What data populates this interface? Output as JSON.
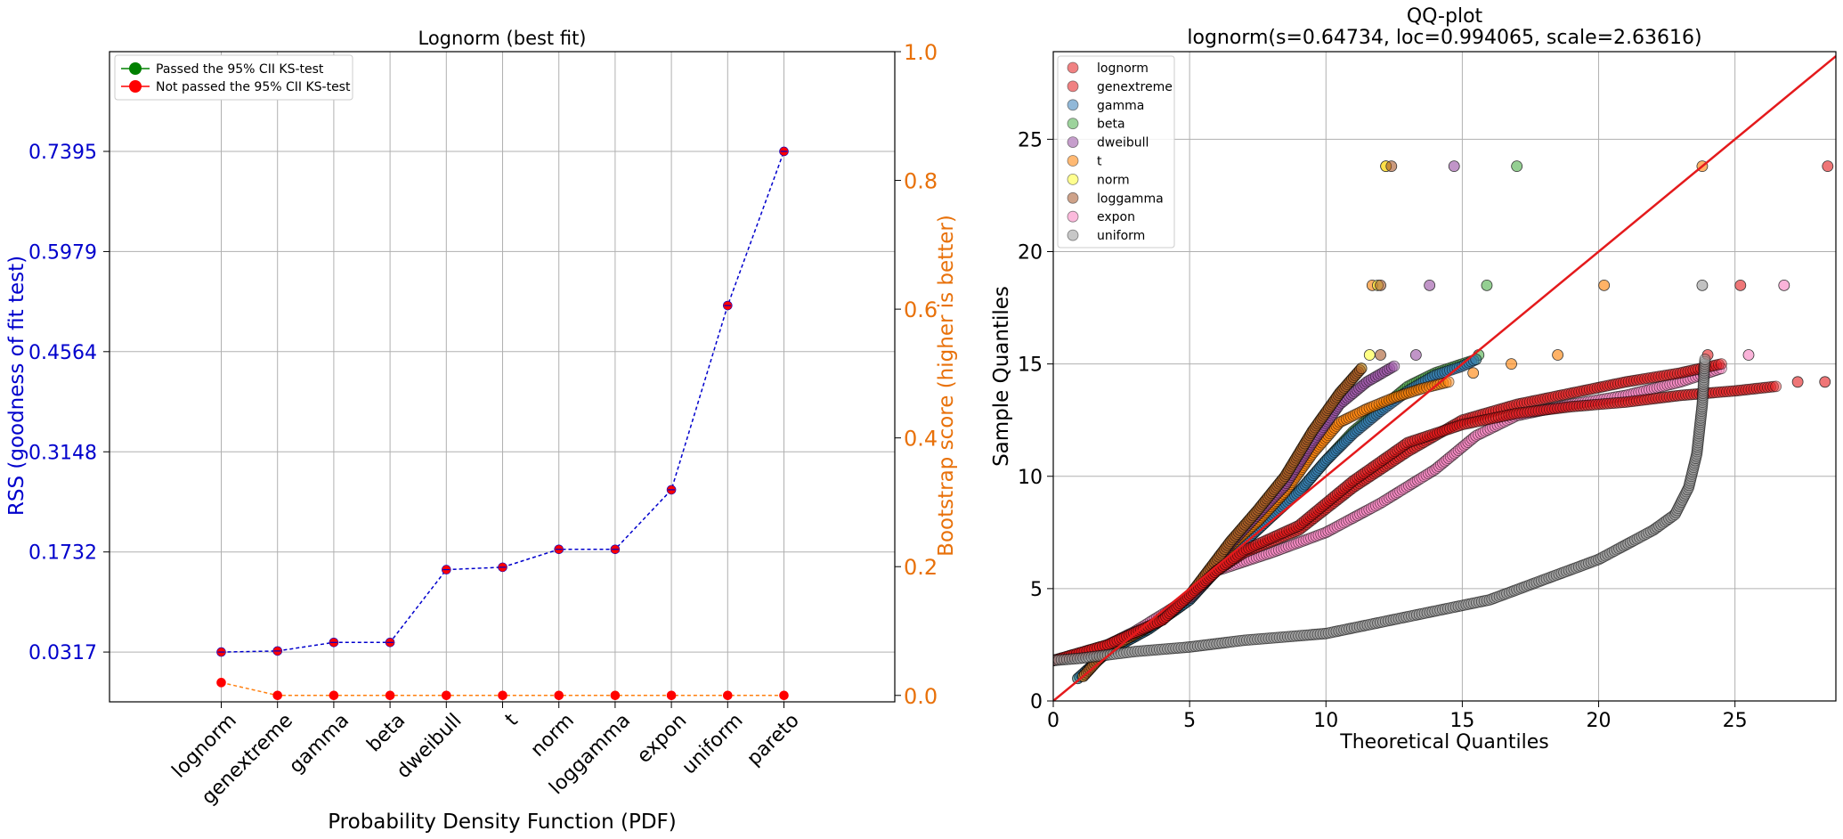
{
  "chart_data": [
    {
      "type": "line",
      "title": "Lognorm (best fit)",
      "xlabel": "Probability Density Function (PDF)",
      "ylabel": "RSS (goodness of fit test)",
      "y2label": "Bootstrap score (higher is better)",
      "categories": [
        "lognorm",
        "genextreme",
        "gamma",
        "beta",
        "dweibull",
        "t",
        "norm",
        "loggamma",
        "expon",
        "uniform",
        "pareto"
      ],
      "series": [
        {
          "values": [
            0.0317,
            0.0332,
            0.0453,
            0.0453,
            0.1482,
            0.1516,
            0.1769,
            0.1769,
            0.2611,
            0.5216,
            0.7395
          ],
          "color": "#0000cc"
        },
        {
          "values": [
            0.02,
            0,
            0,
            0,
            0,
            0,
            0,
            0,
            0,
            0,
            0
          ],
          "color": "#ff7f0e"
        }
      ],
      "yticks": [
        "0.0317",
        "0.1732",
        "0.3148",
        "0.4564",
        "0.5979",
        "0.7395"
      ],
      "ylim": [
        -0.0387,
        0.8805
      ],
      "y2ticks": [
        "0.0",
        "0.2",
        "0.4",
        "0.6",
        "0.8",
        "1.0"
      ],
      "y2lim": [
        -0.01,
        1.0
      ],
      "legend": {
        "placement": "top-left",
        "entries": [
          {
            "label": "Passed the 95% CII KS-test",
            "color": "#008000"
          },
          {
            "label": "Not passed the 95% CII KS-test",
            "color": "#ff0000"
          }
        ]
      },
      "grid": true
    },
    {
      "type": "scatter",
      "title": "QQ-plot",
      "subtitle": "lognorm(s=0.64734, loc=0.994065, scale=2.63616)",
      "xlabel": "Theoretical Quantiles",
      "ylabel": "Sample Quantiles",
      "xlim": [
        0,
        28.7
      ],
      "ylim": [
        0,
        28.9
      ],
      "xticks": [
        "0",
        "5",
        "10",
        "15",
        "20",
        "25"
      ],
      "yticks": [
        "0",
        "5",
        "10",
        "15",
        "20",
        "25"
      ],
      "reference_line": {
        "from": [
          0,
          0
        ],
        "to": [
          28.7,
          28.7
        ],
        "color": "#e41a1c"
      },
      "legend": {
        "placement": "top-left",
        "entries": [
          {
            "label": "lognorm",
            "color": "#e41a1c"
          },
          {
            "label": "genextreme",
            "color": "#e41a1c"
          },
          {
            "label": "gamma",
            "color": "#377eb8"
          },
          {
            "label": "beta",
            "color": "#4daf4a"
          },
          {
            "label": "dweibull",
            "color": "#984ea3"
          },
          {
            "label": "t",
            "color": "#ff7f00"
          },
          {
            "label": "norm",
            "color": "#ffff33"
          },
          {
            "label": "loggamma",
            "color": "#a65628"
          },
          {
            "label": "expon",
            "color": "#f781bf"
          },
          {
            "label": "uniform",
            "color": "#999999"
          }
        ]
      },
      "series": [
        {
          "name": "beta",
          "color": "#4daf4a",
          "curve": [
            [
              0.9,
              1.0
            ],
            [
              2,
              2.2
            ],
            [
              3.5,
              3.2
            ],
            [
              5,
              4.5
            ],
            [
              6.5,
              6.5
            ],
            [
              8,
              8.2
            ],
            [
              9,
              9.3
            ],
            [
              10,
              10.7
            ],
            [
              11,
              12
            ],
            [
              12,
              13
            ],
            [
              13,
              14
            ],
            [
              14,
              14.6
            ],
            [
              15,
              15.0
            ],
            [
              15.5,
              15.2
            ]
          ],
          "outliers": [
            [
              15.6,
              15.4
            ],
            [
              15.9,
              18.5
            ],
            [
              17.0,
              23.8
            ]
          ]
        },
        {
          "name": "gamma",
          "color": "#377eb8",
          "curve": [
            [
              0.9,
              1.0
            ],
            [
              2,
              2.2
            ],
            [
              3.5,
              3.2
            ],
            [
              5,
              4.5
            ],
            [
              6.5,
              6.5
            ],
            [
              8,
              8.2
            ],
            [
              9,
              9.3
            ],
            [
              10,
              10.7
            ],
            [
              11,
              11.9
            ],
            [
              12,
              12.9
            ],
            [
              13,
              13.8
            ],
            [
              14,
              14.5
            ],
            [
              15,
              14.9
            ],
            [
              15.5,
              15.2
            ]
          ],
          "outliers": []
        },
        {
          "name": "t",
          "color": "#ff7f00",
          "curve": [
            [
              1.1,
              1.1
            ],
            [
              2,
              2.3
            ],
            [
              3.5,
              3.3
            ],
            [
              5,
              4.7
            ],
            [
              6.5,
              6.9
            ],
            [
              7.5,
              8
            ],
            [
              8.5,
              9.3
            ],
            [
              9.5,
              11
            ],
            [
              10.5,
              12.4
            ],
            [
              11.5,
              13
            ],
            [
              12.5,
              13.5
            ],
            [
              13.5,
              13.9
            ],
            [
              14.5,
              14.2
            ]
          ],
          "outliers": [
            [
              15.4,
              14.6
            ],
            [
              16.8,
              15.0
            ],
            [
              18.5,
              15.4
            ],
            [
              11.7,
              18.5
            ],
            [
              20.2,
              18.5
            ],
            [
              12.2,
              23.8
            ],
            [
              23.8,
              23.8
            ]
          ]
        },
        {
          "name": "dweibull",
          "color": "#984ea3",
          "curve": [
            [
              1.1,
              1.1
            ],
            [
              2,
              2.3
            ],
            [
              3.5,
              3.3
            ],
            [
              5,
              4.7
            ],
            [
              6.5,
              7
            ],
            [
              7.5,
              8.3
            ],
            [
              8.5,
              9.6
            ],
            [
              9.5,
              11.5
            ],
            [
              10.5,
              13.2
            ],
            [
              11.5,
              14.2
            ],
            [
              12.5,
              14.9
            ]
          ],
          "outliers": [
            [
              13.3,
              15.4
            ],
            [
              13.8,
              18.5
            ],
            [
              14.7,
              23.8
            ]
          ]
        },
        {
          "name": "norm",
          "color": "#ffff33",
          "curve": [
            [
              1.1,
              1.1
            ],
            [
              2,
              2.3
            ],
            [
              3.5,
              3.3
            ],
            [
              5,
              4.7
            ],
            [
              6.5,
              7.1
            ],
            [
              7.5,
              8.5
            ],
            [
              8.5,
              10
            ],
            [
              9.5,
              12
            ],
            [
              10.5,
              13.7
            ],
            [
              11.3,
              14.8
            ]
          ],
          "outliers": [
            [
              11.6,
              15.4
            ],
            [
              11.9,
              18.5
            ],
            [
              12.2,
              23.8
            ]
          ]
        },
        {
          "name": "loggamma",
          "color": "#a65628",
          "curve": [
            [
              1.1,
              1.1
            ],
            [
              2,
              2.3
            ],
            [
              3.5,
              3.3
            ],
            [
              5,
              4.7
            ],
            [
              6.5,
              7.1
            ],
            [
              7.5,
              8.5
            ],
            [
              8.5,
              10
            ],
            [
              9.5,
              12
            ],
            [
              10.5,
              13.7
            ],
            [
              11.3,
              14.8
            ]
          ],
          "outliers": [
            [
              12.0,
              15.4
            ],
            [
              12.0,
              18.5
            ],
            [
              12.4,
              23.8
            ]
          ]
        },
        {
          "name": "expon",
          "color": "#f781bf",
          "curve": [
            [
              0,
              1.8
            ],
            [
              1.5,
              2.2
            ],
            [
              3,
              3.1
            ],
            [
              5,
              4.6
            ],
            [
              6,
              5.8
            ],
            [
              8,
              6.6
            ],
            [
              10,
              7.5
            ],
            [
              12,
              8.8
            ],
            [
              14,
              10.3
            ],
            [
              15.5,
              11.8
            ],
            [
              17,
              12.7
            ],
            [
              19,
              13.2
            ],
            [
              21,
              13.6
            ],
            [
              23,
              14.2
            ],
            [
              24.5,
              14.8
            ]
          ],
          "outliers": [
            [
              25.5,
              15.4
            ],
            [
              26.8,
              18.5
            ]
          ]
        },
        {
          "name": "lognorm",
          "color": "#e41a1c",
          "curve": [
            [
              0,
              1.8
            ],
            [
              2,
              2.5
            ],
            [
              4,
              3.6
            ],
            [
              6,
              5.8
            ],
            [
              7,
              6.6
            ],
            [
              9,
              7.6
            ],
            [
              11,
              9.5
            ],
            [
              13,
              11.1
            ],
            [
              15,
              12.5
            ],
            [
              17,
              13.2
            ],
            [
              19,
              13.7
            ],
            [
              21,
              14.2
            ],
            [
              23,
              14.6
            ],
            [
              24.5,
              15.0
            ]
          ],
          "outliers": [
            [
              24.0,
              15.4
            ],
            [
              25.2,
              18.5
            ],
            [
              28.4,
              23.8
            ]
          ]
        },
        {
          "name": "genextreme",
          "color": "#e41a1c",
          "curve": [
            [
              0,
              1.8
            ],
            [
              2,
              2.5
            ],
            [
              4,
              3.6
            ],
            [
              6,
              5.8
            ],
            [
              7,
              6.7
            ],
            [
              9,
              7.8
            ],
            [
              11,
              9.8
            ],
            [
              13,
              11.5
            ],
            [
              15,
              12.3
            ],
            [
              17,
              12.8
            ],
            [
              19,
              13.1
            ],
            [
              21,
              13.3
            ],
            [
              23,
              13.6
            ],
            [
              25,
              13.8
            ],
            [
              26.5,
              14.0
            ]
          ],
          "outliers": [
            [
              27.3,
              14.2
            ],
            [
              28.3,
              14.2
            ]
          ]
        },
        {
          "name": "uniform",
          "color": "#999999",
          "curve": [
            [
              0,
              1.8
            ],
            [
              1,
              1.9
            ],
            [
              3,
              2.2
            ],
            [
              5,
              2.4
            ],
            [
              7,
              2.7
            ],
            [
              10,
              3.0
            ],
            [
              12,
              3.5
            ],
            [
              14,
              4.0
            ],
            [
              16,
              4.5
            ],
            [
              18,
              5.4
            ],
            [
              20,
              6.3
            ],
            [
              22,
              7.6
            ],
            [
              22.8,
              8.3
            ],
            [
              23.3,
              9.5
            ],
            [
              23.6,
              11.0
            ],
            [
              23.8,
              13.2
            ],
            [
              23.9,
              15.2
            ]
          ],
          "outliers": [
            [
              23.8,
              18.5
            ]
          ]
        }
      ],
      "grid": true
    }
  ]
}
